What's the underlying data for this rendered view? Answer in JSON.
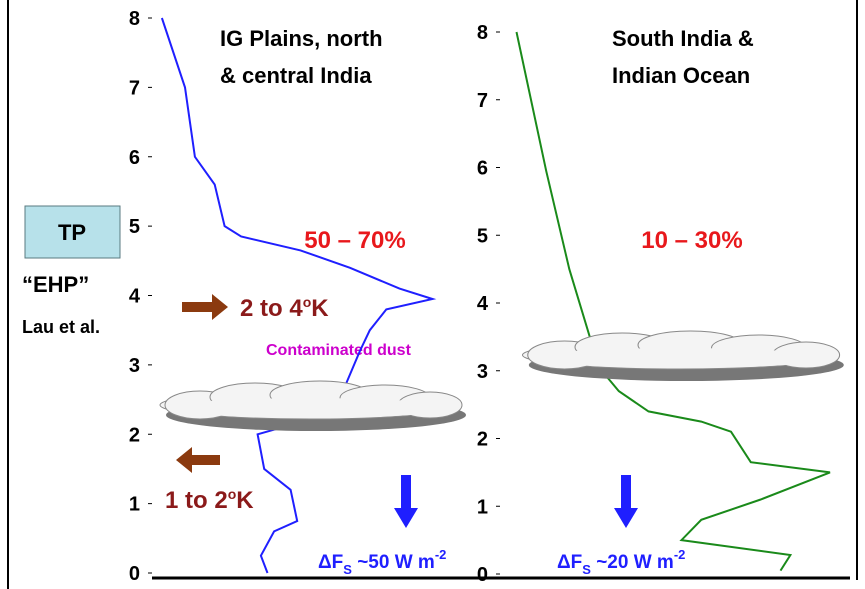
{
  "sidebar": {
    "box": "TP",
    "ehp": "“EHP”",
    "ref": "Lau et al."
  },
  "chart_data": [
    {
      "type": "line",
      "title": [
        "IG Plains, north",
        "& central India"
      ],
      "share": "50 – 70%",
      "warming": [
        "2 to 4",
        "o",
        "K"
      ],
      "cooling": [
        "1 to 2",
        "o",
        "K"
      ],
      "dust": "Contaminated dust",
      "flux": [
        "ΔF",
        "S",
        " ~50 W m",
        "-2"
      ],
      "color": "#1f1fff",
      "x": [
        3,
        10,
        13,
        19,
        22,
        27,
        45,
        60,
        75,
        85,
        71,
        66,
        63,
        59,
        58,
        32,
        34,
        42,
        44,
        37,
        33,
        35
      ],
      "values": [
        8,
        7,
        6,
        5.6,
        5,
        4.85,
        4.65,
        4.4,
        4.1,
        3.95,
        3.8,
        3.5,
        3.2,
        2.75,
        2.35,
        2.0,
        1.5,
        1.2,
        0.75,
        0.6,
        0.25,
        0
      ],
      "xlim": [
        0,
        110
      ],
      "ylim": [
        0,
        8
      ],
      "yticks": [
        0,
        1,
        2,
        3,
        4,
        5,
        6,
        7,
        8
      ]
    },
    {
      "type": "line",
      "title": [
        "South India &",
        "Indian Ocean"
      ],
      "share": "10 – 30%",
      "flux": [
        "ΔF",
        "S",
        " ~20 W m",
        "-2"
      ],
      "color": "#1a8a1a",
      "x": [
        5,
        14,
        21,
        30,
        36,
        45,
        61,
        70,
        76,
        100,
        79,
        61,
        55,
        88,
        85
      ],
      "values": [
        8,
        5.95,
        4.5,
        3.05,
        2.7,
        2.4,
        2.25,
        2.1,
        1.65,
        1.5,
        1.1,
        0.8,
        0.5,
        0.28,
        0.05
      ],
      "xlim": [
        0,
        110
      ],
      "ylim": [
        0,
        8
      ],
      "yticks": [
        0,
        1,
        2,
        3,
        4,
        5,
        6,
        7,
        8
      ]
    }
  ]
}
